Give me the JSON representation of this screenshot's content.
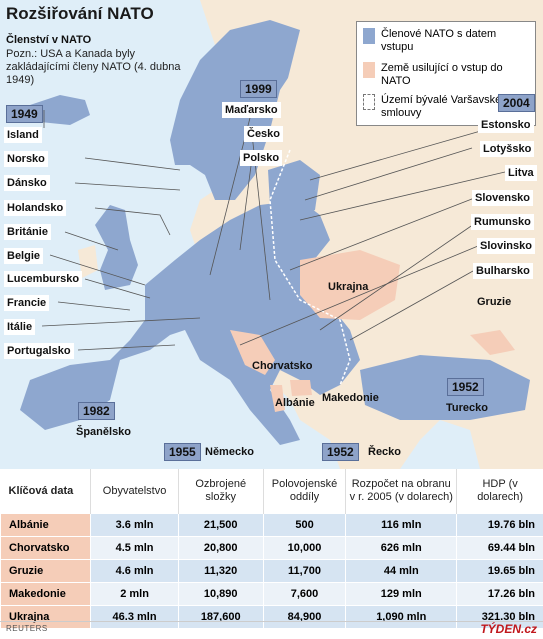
{
  "title": "Rozšiřování NATO",
  "membership": {
    "heading": "Členství v NATO",
    "note": "Pozn.: USA a Kanada byly zakládajícími členy NATO (4. dubna 1949)"
  },
  "legend": {
    "members": "Členové NATO s datem vstupu",
    "candidates": "Země usilující o vstup do NATO",
    "warsaw": "Území bývalé Varšavské smlouvy",
    "colors": {
      "members": "#8ea7cf",
      "candidates": "#f5cdb8",
      "neutral": "#f6e9d7",
      "sea": "#dfeef8"
    }
  },
  "years": {
    "y1949": "1949",
    "y1999": "1999",
    "y2004": "2004",
    "y1982": "1982",
    "y1955": "1955",
    "y1952a": "1952",
    "y1952b": "1952"
  },
  "labels": {
    "island": "Island",
    "norsko": "Norsko",
    "dansko": "Dánsko",
    "holandsko": "Holandsko",
    "britanie": "Británie",
    "belgie": "Belgie",
    "lucembursko": "Lucembursko",
    "francie": "Francie",
    "italie": "Itálie",
    "portugalsko": "Portugalsko",
    "madarsko": "Maďarsko",
    "cesko": "Česko",
    "polsko": "Polsko",
    "estonsko": "Estonsko",
    "lotyssko": "Lotyšsko",
    "litva": "Litva",
    "slovensko": "Slovensko",
    "rumunsko": "Rumunsko",
    "slovinsko": "Slovinsko",
    "bulharsko": "Bulharsko",
    "gruzie": "Gruzie",
    "ukrajna": "Ukrajna",
    "chorvatsko": "Chorvatsko",
    "albanie": "Albánie",
    "makedonie": "Makedonie",
    "turecko": "Turecko",
    "spanelsko": "Španělsko",
    "nemecko": "Německo",
    "recko": "Řecko"
  },
  "table": {
    "headers": [
      "Klíčová data",
      "Obyvatelstvo",
      "Ozbrojené složky",
      "Polovojenské oddíly",
      "Rozpočet na obranu v r. 2005 (v dolarech)",
      "HDP (v dolarech)"
    ],
    "rows": [
      {
        "country": "Albánie",
        "population": "3.6 mln",
        "armed": "21,500",
        "paramilitary": "500",
        "budget": "116 mln",
        "gdp": "19.76 bln"
      },
      {
        "country": "Chorvatsko",
        "population": "4.5 mln",
        "armed": "20,800",
        "paramilitary": "10,000",
        "budget": "626 mln",
        "gdp": "69.44 bln"
      },
      {
        "country": "Gruzie",
        "population": "4.6 mln",
        "armed": "11,320",
        "paramilitary": "11,700",
        "budget": "44 mln",
        "gdp": "19.65 bln"
      },
      {
        "country": "Makedonie",
        "population": "2 mln",
        "armed": "10,890",
        "paramilitary": "7,600",
        "budget": "129 mln",
        "gdp": "17.26 bln"
      },
      {
        "country": "Ukrajna",
        "population": "46.3 mln",
        "armed": "187,600",
        "paramilitary": "84,900",
        "budget": "1,090 mln",
        "gdp": "321.30 bln"
      }
    ]
  },
  "footer": {
    "source": "REUTERS",
    "brand": "TÝDEN.cz"
  }
}
